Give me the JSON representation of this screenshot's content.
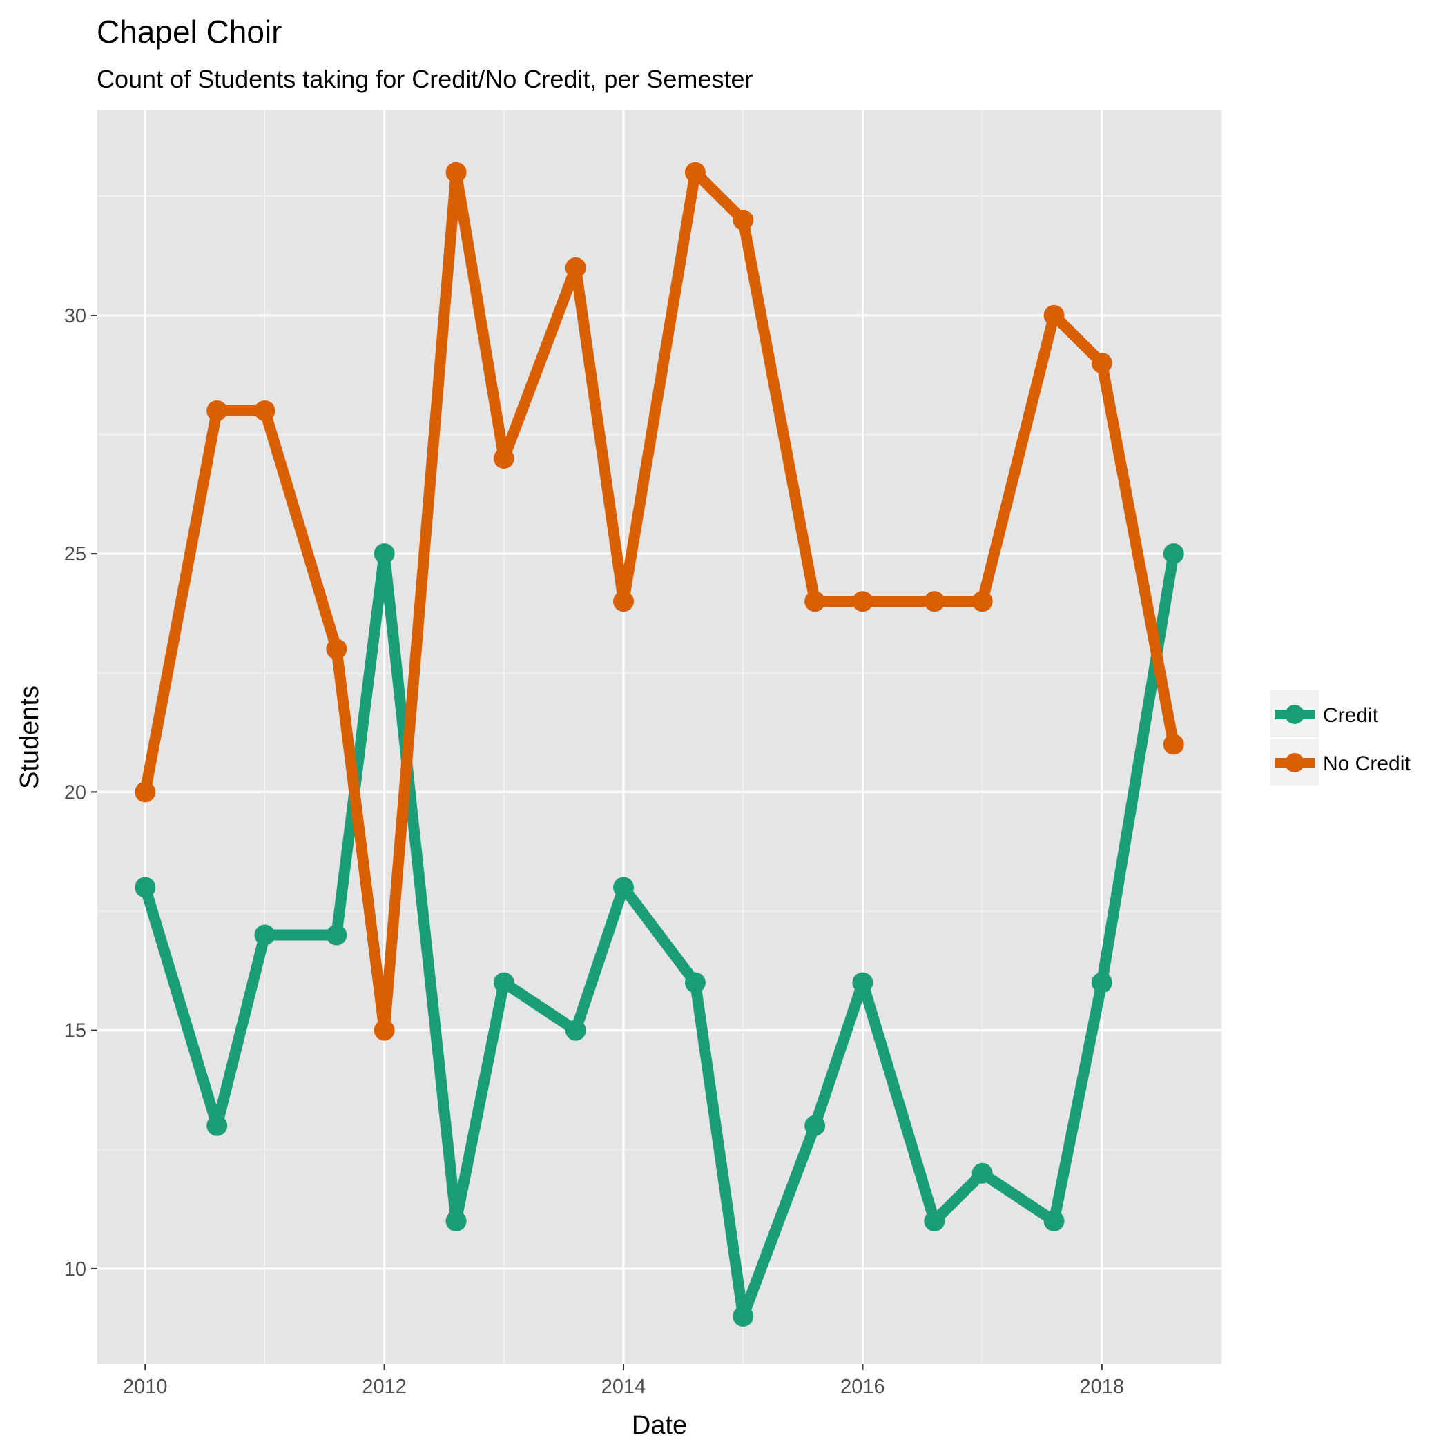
{
  "chart_data": {
    "type": "line",
    "title": "Chapel Choir",
    "subtitle": "Count of Students taking for Credit/No Credit, per Semester",
    "xlabel": "Date",
    "ylabel": "Students",
    "xlim": [
      2009.6,
      2019.0
    ],
    "ylim": [
      8.0,
      34.3
    ],
    "x_ticks": [
      2010,
      2012,
      2014,
      2016,
      2018
    ],
    "y_ticks": [
      10,
      15,
      20,
      25,
      30
    ],
    "x_tick_labels": [
      "2010",
      "2012",
      "2014",
      "2016",
      "2018"
    ],
    "y_tick_labels": [
      "10",
      "15",
      "20",
      "25",
      "30"
    ],
    "grid": true,
    "legend_position": "right",
    "x": [
      2010.0,
      2010.6,
      2011.0,
      2011.6,
      2012.0,
      2012.6,
      2013.0,
      2013.6,
      2014.0,
      2014.6,
      2015.0,
      2015.6,
      2016.0,
      2016.6,
      2017.0,
      2017.6,
      2018.0,
      2018.6
    ],
    "series": [
      {
        "name": "Credit",
        "color": "#1b9e77",
        "values": [
          18,
          13,
          17,
          17,
          25,
          11,
          16,
          15,
          18,
          16,
          9,
          13,
          16,
          11,
          12,
          11,
          16,
          25
        ]
      },
      {
        "name": "No Credit",
        "color": "#d95f02",
        "values": [
          20,
          28,
          28,
          23,
          15,
          33,
          27,
          31,
          24,
          33,
          32,
          24,
          24,
          24,
          24,
          30,
          29,
          21
        ]
      }
    ]
  }
}
